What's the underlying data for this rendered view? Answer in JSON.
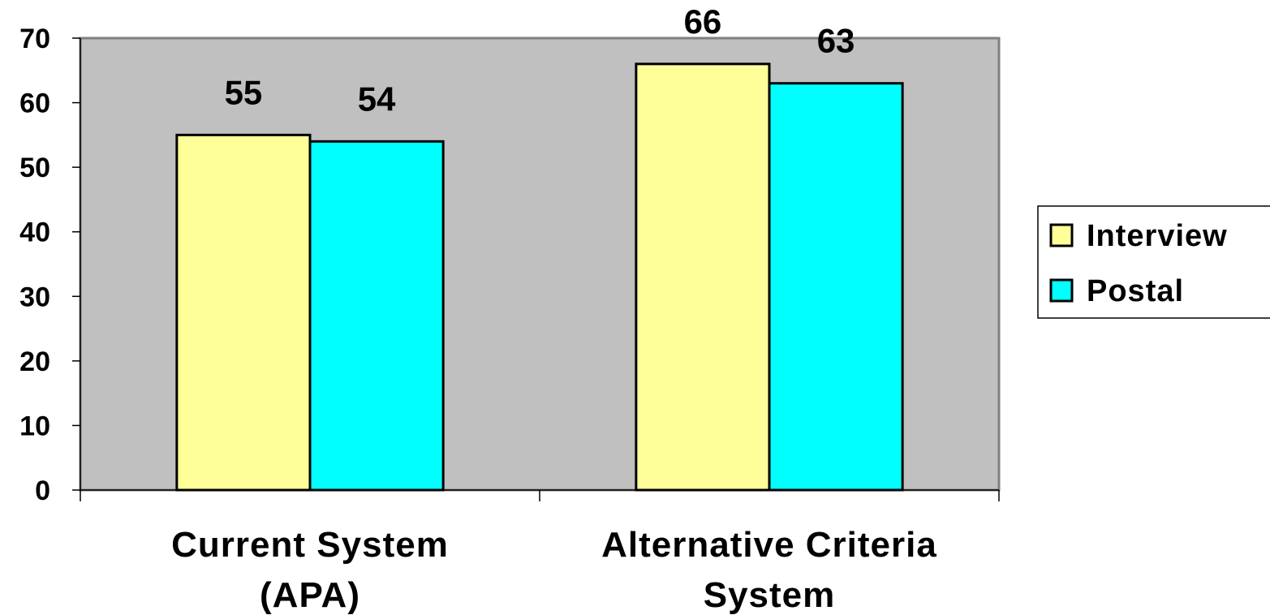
{
  "chart_data": {
    "type": "bar",
    "categories": [
      [
        "Current System",
        "(APA)"
      ],
      [
        "Alternative Criteria",
        "System"
      ]
    ],
    "series": [
      {
        "name": "Interview",
        "values": [
          55,
          66
        ],
        "color": "#FFFF99"
      },
      {
        "name": "Postal",
        "values": [
          54,
          63
        ],
        "color": "#00FFFF"
      }
    ],
    "yticks": [
      0,
      10,
      20,
      30,
      40,
      50,
      60,
      70
    ],
    "ylim": [
      0,
      70
    ],
    "grid": false,
    "legend": "right",
    "plot_background": "#C0C0C0"
  }
}
